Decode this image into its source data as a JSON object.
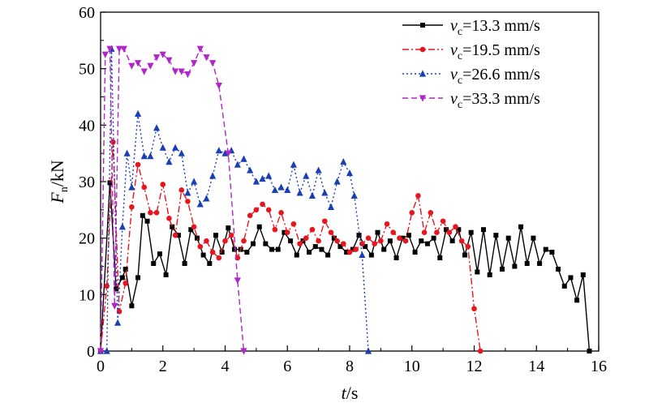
{
  "chart_data": {
    "type": "line",
    "xlabel": {
      "var": "t",
      "unit": "/s"
    },
    "ylabel": {
      "var": "F",
      "sub": "n",
      "unit": "/kN"
    },
    "xlim": [
      0,
      16
    ],
    "ylim": [
      0,
      60
    ],
    "xticks": [
      0,
      2,
      4,
      6,
      8,
      10,
      12,
      14,
      16
    ],
    "yticks": [
      0,
      10,
      20,
      30,
      40,
      50,
      60
    ],
    "legend_position": "top-right",
    "grid": false,
    "series": [
      {
        "name": "v_c=13.3 mm/s",
        "label_var": "v",
        "label_sub": "c",
        "label_value": "=13.3 mm/s",
        "color": "#000000",
        "dash": "",
        "marker": "square",
        "points": [
          [
            0.0,
            0.0
          ],
          [
            0.3,
            29.8
          ],
          [
            0.5,
            11.0
          ],
          [
            0.7,
            13.0
          ],
          [
            0.8,
            14.5
          ],
          [
            1.0,
            8.0
          ],
          [
            1.2,
            13.0
          ],
          [
            1.35,
            24.0
          ],
          [
            1.5,
            23.0
          ],
          [
            1.7,
            15.5
          ],
          [
            1.9,
            17.2
          ],
          [
            2.1,
            13.5
          ],
          [
            2.3,
            22.0
          ],
          [
            2.5,
            20.5
          ],
          [
            2.7,
            15.5
          ],
          [
            2.9,
            21.5
          ],
          [
            3.1,
            20.0
          ],
          [
            3.3,
            17.0
          ],
          [
            3.5,
            15.5
          ],
          [
            3.7,
            20.5
          ],
          [
            3.9,
            17.5
          ],
          [
            4.1,
            21.8
          ],
          [
            4.3,
            18.0
          ],
          [
            4.5,
            18.0
          ],
          [
            4.7,
            17.5
          ],
          [
            4.9,
            19.0
          ],
          [
            5.1,
            22.0
          ],
          [
            5.3,
            19.0
          ],
          [
            5.5,
            18.0
          ],
          [
            5.7,
            18.0
          ],
          [
            5.9,
            21.0
          ],
          [
            6.1,
            19.5
          ],
          [
            6.3,
            17.0
          ],
          [
            6.5,
            19.5
          ],
          [
            6.7,
            17.5
          ],
          [
            6.9,
            18.5
          ],
          [
            7.1,
            18.0
          ],
          [
            7.3,
            17.0
          ],
          [
            7.5,
            20.0
          ],
          [
            7.7,
            18.5
          ],
          [
            7.9,
            17.5
          ],
          [
            8.1,
            18.0
          ],
          [
            8.3,
            20.5
          ],
          [
            8.5,
            18.5
          ],
          [
            8.7,
            17.0
          ],
          [
            8.9,
            21.0
          ],
          [
            9.1,
            18.0
          ],
          [
            9.3,
            19.5
          ],
          [
            9.5,
            16.5
          ],
          [
            9.7,
            20.0
          ],
          [
            9.9,
            20.5
          ],
          [
            10.1,
            17.5
          ],
          [
            10.3,
            19.5
          ],
          [
            10.5,
            19.0
          ],
          [
            10.7,
            20.0
          ],
          [
            10.9,
            16.5
          ],
          [
            11.1,
            21.5
          ],
          [
            11.3,
            19.5
          ],
          [
            11.5,
            21.5
          ],
          [
            11.7,
            17.0
          ],
          [
            11.9,
            21.0
          ],
          [
            12.1,
            14.0
          ],
          [
            12.3,
            21.5
          ],
          [
            12.5,
            13.5
          ],
          [
            12.7,
            20.5
          ],
          [
            12.9,
            14.5
          ],
          [
            13.1,
            20.0
          ],
          [
            13.3,
            15.0
          ],
          [
            13.5,
            22.0
          ],
          [
            13.7,
            15.5
          ],
          [
            13.9,
            20.0
          ],
          [
            14.1,
            15.5
          ],
          [
            14.3,
            18.0
          ],
          [
            14.5,
            17.5
          ],
          [
            14.7,
            14.5
          ],
          [
            14.9,
            11.5
          ],
          [
            15.1,
            13.0
          ],
          [
            15.3,
            9.0
          ],
          [
            15.5,
            13.5
          ],
          [
            15.7,
            0.0
          ]
        ]
      },
      {
        "name": "v_c=19.5 mm/s",
        "label_var": "v",
        "label_sub": "c",
        "label_value": "=19.5 mm/s",
        "color": "#e8151f",
        "dash": "8 3 2 3",
        "marker": "circle",
        "points": [
          [
            0.0,
            0.0
          ],
          [
            0.2,
            11.5
          ],
          [
            0.4,
            37.0
          ],
          [
            0.6,
            7.0
          ],
          [
            0.8,
            12.0
          ],
          [
            1.0,
            25.5
          ],
          [
            1.2,
            33.0
          ],
          [
            1.4,
            29.0
          ],
          [
            1.6,
            24.5
          ],
          [
            1.8,
            24.5
          ],
          [
            2.0,
            29.5
          ],
          [
            2.2,
            23.5
          ],
          [
            2.4,
            20.5
          ],
          [
            2.6,
            28.5
          ],
          [
            2.8,
            26.5
          ],
          [
            3.0,
            22.0
          ],
          [
            3.2,
            18.5
          ],
          [
            3.4,
            19.5
          ],
          [
            3.6,
            17.5
          ],
          [
            3.8,
            16.5
          ],
          [
            4.0,
            19.5
          ],
          [
            4.2,
            20.5
          ],
          [
            4.4,
            16.5
          ],
          [
            4.6,
            19.5
          ],
          [
            4.8,
            24.0
          ],
          [
            5.0,
            25.0
          ],
          [
            5.2,
            26.0
          ],
          [
            5.4,
            25.0
          ],
          [
            5.6,
            21.5
          ],
          [
            5.8,
            24.5
          ],
          [
            6.0,
            21.0
          ],
          [
            6.2,
            22.5
          ],
          [
            6.4,
            19.0
          ],
          [
            6.6,
            20.0
          ],
          [
            6.8,
            21.5
          ],
          [
            7.0,
            19.5
          ],
          [
            7.2,
            23.0
          ],
          [
            7.4,
            21.0
          ],
          [
            7.6,
            19.5
          ],
          [
            7.8,
            19.0
          ],
          [
            8.0,
            17.5
          ],
          [
            8.2,
            18.0
          ],
          [
            8.4,
            19.0
          ],
          [
            8.6,
            20.0
          ],
          [
            8.8,
            19.0
          ],
          [
            9.0,
            19.5
          ],
          [
            9.2,
            22.5
          ],
          [
            9.4,
            21.0
          ],
          [
            9.6,
            20.0
          ],
          [
            9.8,
            19.5
          ],
          [
            10.0,
            24.5
          ],
          [
            10.2,
            27.5
          ],
          [
            10.4,
            21.0
          ],
          [
            10.6,
            24.5
          ],
          [
            10.8,
            21.0
          ],
          [
            11.0,
            23.0
          ],
          [
            11.2,
            21.0
          ],
          [
            11.4,
            22.0
          ],
          [
            11.6,
            19.5
          ],
          [
            11.8,
            18.5
          ],
          [
            12.0,
            7.5
          ],
          [
            12.2,
            0.0
          ]
        ]
      },
      {
        "name": "v_c=26.6 mm/s",
        "label_var": "v",
        "label_sub": "c",
        "label_value": "=26.6 mm/s",
        "color": "#1a3fb5",
        "dash": "2 3",
        "marker": "triangle-up",
        "points": [
          [
            0.0,
            0.0
          ],
          [
            0.2,
            0.0
          ],
          [
            0.35,
            53.5
          ],
          [
            0.55,
            5.0
          ],
          [
            0.7,
            22.0
          ],
          [
            0.85,
            35.0
          ],
          [
            1.0,
            29.0
          ],
          [
            1.2,
            42.0
          ],
          [
            1.4,
            34.5
          ],
          [
            1.6,
            34.5
          ],
          [
            1.8,
            39.5
          ],
          [
            2.0,
            36.0
          ],
          [
            2.2,
            33.5
          ],
          [
            2.4,
            36.0
          ],
          [
            2.6,
            35.0
          ],
          [
            2.8,
            28.0
          ],
          [
            3.0,
            30.0
          ],
          [
            3.2,
            26.0
          ],
          [
            3.4,
            27.0
          ],
          [
            3.6,
            31.0
          ],
          [
            3.8,
            35.5
          ],
          [
            4.0,
            35.0
          ],
          [
            4.2,
            35.5
          ],
          [
            4.4,
            33.0
          ],
          [
            4.6,
            34.0
          ],
          [
            4.8,
            32.0
          ],
          [
            5.0,
            30.0
          ],
          [
            5.2,
            30.5
          ],
          [
            5.4,
            31.0
          ],
          [
            5.6,
            28.5
          ],
          [
            5.8,
            29.0
          ],
          [
            6.0,
            28.5
          ],
          [
            6.2,
            33.0
          ],
          [
            6.4,
            28.0
          ],
          [
            6.6,
            31.0
          ],
          [
            6.8,
            27.5
          ],
          [
            7.0,
            32.0
          ],
          [
            7.2,
            28.0
          ],
          [
            7.4,
            25.5
          ],
          [
            7.6,
            30.0
          ],
          [
            7.8,
            33.5
          ],
          [
            8.0,
            31.5
          ],
          [
            8.15,
            27.5
          ],
          [
            8.4,
            17.0
          ],
          [
            8.6,
            0.0
          ]
        ]
      },
      {
        "name": "v_c=33.3 mm/s",
        "label_var": "v",
        "label_sub": "c",
        "label_value": "=33.3 mm/s",
        "color": "#b026c8",
        "dash": "7 4",
        "marker": "triangle-down",
        "points": [
          [
            0.0,
            0.0
          ],
          [
            0.15,
            52.5
          ],
          [
            0.3,
            53.5
          ],
          [
            0.45,
            8.0
          ],
          [
            0.6,
            53.5
          ],
          [
            0.75,
            53.5
          ],
          [
            1.0,
            50.5
          ],
          [
            1.2,
            51.0
          ],
          [
            1.4,
            49.5
          ],
          [
            1.6,
            50.5
          ],
          [
            1.8,
            52.0
          ],
          [
            2.0,
            52.5
          ],
          [
            2.2,
            51.5
          ],
          [
            2.4,
            49.5
          ],
          [
            2.6,
            49.5
          ],
          [
            2.8,
            49.0
          ],
          [
            3.0,
            51.0
          ],
          [
            3.2,
            53.5
          ],
          [
            3.4,
            52.0
          ],
          [
            3.6,
            51.0
          ],
          [
            3.8,
            47.0
          ],
          [
            4.1,
            35.0
          ],
          [
            4.4,
            12.5
          ],
          [
            4.6,
            0.0
          ]
        ]
      }
    ]
  }
}
